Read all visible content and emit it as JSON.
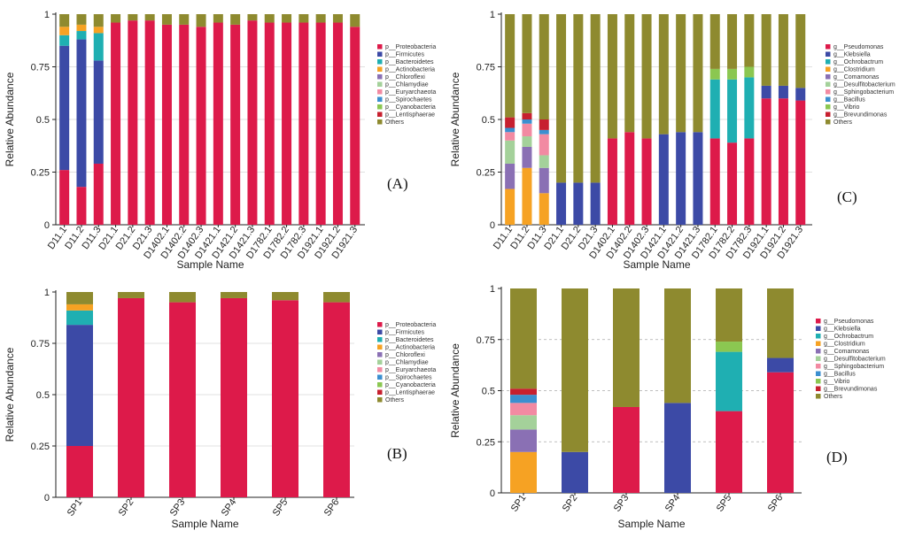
{
  "colors": {
    "Proteobacteria": "#dd1a4a",
    "Firmicutes": "#3c4aa6",
    "Bacteroidetes": "#1fafb2",
    "Actinobacteria": "#f6a223",
    "Chloroflexi": "#8a70b4",
    "Chlamydiae": "#a4d19a",
    "Euryarchaeota": "#f28aa2",
    "Spirochaetes": "#3b8fd0",
    "Cyanobacteria": "#8bc751",
    "Lentisphaerae": "#c7202f",
    "Others": "#8e8a2f",
    "Pseudomonas": "#dd1a4a",
    "Klebsiella": "#3c4aa6",
    "Ochrobactrum": "#1fafb2",
    "Clostridium": "#f6a223",
    "Comamonas": "#8a70b4",
    "Desulfitobacterium": "#a4d19a",
    "Sphingobacterium": "#f28aa2",
    "Bacillus": "#3b8fd0",
    "Vibrio": "#8bc751",
    "Brevundimonas": "#c7202f"
  },
  "chart_data": [
    {
      "panel": "(A)",
      "type": "bar",
      "stacked": true,
      "xlabel": "Sample Name",
      "ylabel": "Relative Abundance",
      "ylim": [
        0,
        1
      ],
      "yticks": [
        "0",
        "0.25",
        "0.5",
        "0.75",
        "1"
      ],
      "legend_position": "right",
      "categories": [
        "D11.1",
        "D11.2",
        "D11.3",
        "D21.1",
        "D21.2",
        "D21.3",
        "D1402.1",
        "D1402.2",
        "D1402.3",
        "D1421.1",
        "D1421.2",
        "D1421.3",
        "D1782.1",
        "D1782.2",
        "D1782.3",
        "D1921.1",
        "D1921.2",
        "D1921.3"
      ],
      "legend": [
        "p__Proteobacteria",
        "p__Firmicutes",
        "p__Bacteroidetes",
        "p__Actinobacteria",
        "p__Chloroflexi",
        "p__Chlamydiae",
        "p__Euryarchaeota",
        "p__Spirochaetes",
        "p__Cyanobacteria",
        "p__Lentisphaerae",
        "Others"
      ],
      "series": [
        {
          "name": "p__Proteobacteria",
          "key": "Proteobacteria",
          "values": [
            0.26,
            0.18,
            0.29,
            0.96,
            0.97,
            0.97,
            0.95,
            0.95,
            0.94,
            0.96,
            0.95,
            0.97,
            0.96,
            0.96,
            0.96,
            0.96,
            0.96,
            0.94
          ]
        },
        {
          "name": "p__Firmicutes",
          "key": "Firmicutes",
          "values": [
            0.59,
            0.7,
            0.49,
            0,
            0,
            0,
            0,
            0,
            0,
            0,
            0,
            0,
            0,
            0,
            0,
            0,
            0,
            0
          ]
        },
        {
          "name": "p__Bacteroidetes",
          "key": "Bacteroidetes",
          "values": [
            0.05,
            0.04,
            0.13,
            0,
            0,
            0,
            0,
            0,
            0,
            0,
            0,
            0,
            0,
            0,
            0,
            0,
            0,
            0
          ]
        },
        {
          "name": "p__Actinobacteria",
          "key": "Actinobacteria",
          "values": [
            0.04,
            0.03,
            0.03,
            0,
            0,
            0,
            0,
            0,
            0,
            0,
            0,
            0,
            0,
            0,
            0,
            0,
            0,
            0
          ]
        },
        {
          "name": "Others",
          "key": "Others",
          "values": [
            0.06,
            0.05,
            0.06,
            0.04,
            0.03,
            0.03,
            0.05,
            0.05,
            0.06,
            0.04,
            0.05,
            0.03,
            0.04,
            0.04,
            0.04,
            0.04,
            0.04,
            0.06
          ]
        }
      ]
    },
    {
      "panel": "(B)",
      "type": "bar",
      "stacked": true,
      "xlabel": "Sample Name",
      "ylabel": "Relative Abundance",
      "ylim": [
        0,
        1
      ],
      "yticks": [
        "0",
        "0.25",
        "0.5",
        "0.75",
        "1"
      ],
      "legend_position": "right",
      "categories": [
        "SP1",
        "SP2",
        "SP3",
        "SP4",
        "SP5",
        "SP6"
      ],
      "legend": [
        "p__Proteobacteria",
        "p__Firmicutes",
        "p__Bacteroidetes",
        "p__Actinobacteria",
        "p__Chloroflexi",
        "p__Chlamydiae",
        "p__Euryarchaeota",
        "p__Spirochaetes",
        "p__Cyanobacteria",
        "p__Lentisphaerae",
        "Others"
      ],
      "series": [
        {
          "name": "p__Proteobacteria",
          "key": "Proteobacteria",
          "values": [
            0.25,
            0.97,
            0.95,
            0.97,
            0.96,
            0.95
          ]
        },
        {
          "name": "p__Firmicutes",
          "key": "Firmicutes",
          "values": [
            0.59,
            0,
            0,
            0,
            0,
            0
          ]
        },
        {
          "name": "p__Bacteroidetes",
          "key": "Bacteroidetes",
          "values": [
            0.07,
            0,
            0,
            0,
            0,
            0
          ]
        },
        {
          "name": "p__Actinobacteria",
          "key": "Actinobacteria",
          "values": [
            0.03,
            0,
            0,
            0,
            0,
            0
          ]
        },
        {
          "name": "Others",
          "key": "Others",
          "values": [
            0.06,
            0.03,
            0.05,
            0.03,
            0.04,
            0.05
          ]
        }
      ]
    },
    {
      "panel": "(C)",
      "type": "bar",
      "stacked": true,
      "xlabel": "Sample Name",
      "ylabel": "Relative Abundance",
      "ylim": [
        0,
        1
      ],
      "yticks": [
        "0",
        "0.25",
        "0.5",
        "0.75",
        "1"
      ],
      "legend_position": "right",
      "categories": [
        "D11.1",
        "D11.2",
        "D11.3",
        "D21.1",
        "D21.2",
        "D21.3",
        "D1402.1",
        "D1402.2",
        "D1402.3",
        "D1421.1",
        "D1421.2",
        "D1421.3",
        "D1782.1",
        "D1782.2",
        "D1782.3",
        "D1921.1",
        "D1921.2",
        "D1921.3"
      ],
      "legend": [
        "g__Pseudomonas",
        "g__Klebsiella",
        "g__Ochrobactrum",
        "g__Clostridium",
        "g__Comamonas",
        "g__Desulfitobacterium",
        "g__Sphingobacterium",
        "g__Bacillus",
        "g__Vibrio",
        "g__Brevundimonas",
        "Others"
      ],
      "series": [
        {
          "name": "g__Pseudomonas",
          "key": "Pseudomonas",
          "values": [
            0,
            0,
            0,
            0,
            0,
            0,
            0.41,
            0.44,
            0.41,
            0,
            0,
            0,
            0.41,
            0.39,
            0.41,
            0.6,
            0.6,
            0.59
          ]
        },
        {
          "name": "g__Klebsiella",
          "key": "Klebsiella",
          "values": [
            0,
            0,
            0,
            0.2,
            0.2,
            0.2,
            0,
            0,
            0,
            0.43,
            0.44,
            0.44,
            0,
            0,
            0,
            0.06,
            0.06,
            0.06
          ]
        },
        {
          "name": "g__Ochrobactrum",
          "key": "Ochrobactrum",
          "values": [
            0,
            0,
            0,
            0,
            0,
            0,
            0,
            0,
            0,
            0,
            0,
            0,
            0.28,
            0.3,
            0.29,
            0,
            0,
            0
          ]
        },
        {
          "name": "g__Clostridium",
          "key": "Clostridium",
          "values": [
            0.17,
            0.27,
            0.15,
            0,
            0,
            0,
            0,
            0,
            0,
            0,
            0,
            0,
            0,
            0,
            0,
            0,
            0,
            0
          ]
        },
        {
          "name": "g__Comamonas",
          "key": "Comamonas",
          "values": [
            0.12,
            0.1,
            0.12,
            0,
            0,
            0,
            0,
            0,
            0,
            0,
            0,
            0,
            0,
            0,
            0,
            0,
            0,
            0
          ]
        },
        {
          "name": "g__Desulfitobacterium",
          "key": "Desulfitobacterium",
          "values": [
            0.11,
            0.05,
            0.06,
            0,
            0,
            0,
            0,
            0,
            0,
            0,
            0,
            0,
            0,
            0,
            0,
            0,
            0,
            0
          ]
        },
        {
          "name": "g__Sphingobacterium",
          "key": "Sphingobacterium",
          "values": [
            0.04,
            0.06,
            0.1,
            0,
            0,
            0,
            0,
            0,
            0,
            0,
            0,
            0,
            0,
            0,
            0,
            0,
            0,
            0
          ]
        },
        {
          "name": "g__Bacillus",
          "key": "Bacillus",
          "values": [
            0.02,
            0.02,
            0.02,
            0,
            0,
            0,
            0,
            0,
            0,
            0,
            0,
            0,
            0,
            0,
            0,
            0,
            0,
            0
          ]
        },
        {
          "name": "g__Vibrio",
          "key": "Vibrio",
          "values": [
            0,
            0,
            0,
            0,
            0,
            0,
            0,
            0,
            0,
            0,
            0,
            0,
            0.05,
            0.05,
            0.05,
            0,
            0,
            0
          ]
        },
        {
          "name": "g__Brevundimonas",
          "key": "Brevundimonas",
          "values": [
            0.05,
            0.03,
            0.05,
            0,
            0,
            0,
            0,
            0,
            0,
            0,
            0,
            0,
            0,
            0,
            0,
            0,
            0,
            0
          ]
        },
        {
          "name": "Others",
          "key": "Others",
          "values": [
            0.49,
            0.47,
            0.5,
            0.8,
            0.8,
            0.8,
            0.59,
            0.56,
            0.59,
            0.57,
            0.56,
            0.56,
            0.26,
            0.26,
            0.25,
            0.34,
            0.34,
            0.35
          ]
        }
      ]
    },
    {
      "panel": "(D)",
      "type": "bar",
      "stacked": true,
      "xlabel": "Sample Name",
      "ylabel": "Relative Abundance",
      "ylim": [
        0,
        1
      ],
      "yticks": [
        "0",
        "0.25",
        "0.5",
        "0.75",
        "1"
      ],
      "legend_position": "right",
      "categories": [
        "SP1",
        "SP2",
        "SP3",
        "SP4",
        "SP5",
        "SP6"
      ],
      "legend": [
        "g__Pseudomonas",
        "g__Klebsiella",
        "g__Ochrobactrum",
        "g__Clostridium",
        "g__Comamonas",
        "g__Desulfitobacterium",
        "g__Sphingobacterium",
        "g__Bacillus",
        "g__Vibrio",
        "g__Brevundimonas",
        "Others"
      ],
      "series": [
        {
          "name": "g__Pseudomonas",
          "key": "Pseudomonas",
          "values": [
            0,
            0,
            0.42,
            0,
            0.4,
            0.59
          ]
        },
        {
          "name": "g__Klebsiella",
          "key": "Klebsiella",
          "values": [
            0,
            0.2,
            0,
            0.44,
            0,
            0.07
          ]
        },
        {
          "name": "g__Ochrobactrum",
          "key": "Ochrobactrum",
          "values": [
            0,
            0,
            0,
            0,
            0.29,
            0
          ]
        },
        {
          "name": "g__Clostridium",
          "key": "Clostridium",
          "values": [
            0.2,
            0,
            0,
            0,
            0,
            0
          ]
        },
        {
          "name": "g__Comamonas",
          "key": "Comamonas",
          "values": [
            0.11,
            0,
            0,
            0,
            0,
            0
          ]
        },
        {
          "name": "g__Desulfitobacterium",
          "key": "Desulfitobacterium",
          "values": [
            0.07,
            0,
            0,
            0,
            0,
            0
          ]
        },
        {
          "name": "g__Sphingobacterium",
          "key": "Sphingobacterium",
          "values": [
            0.06,
            0,
            0,
            0,
            0,
            0
          ]
        },
        {
          "name": "g__Bacillus",
          "key": "Bacillus",
          "values": [
            0.04,
            0,
            0,
            0,
            0,
            0
          ]
        },
        {
          "name": "g__Vibrio",
          "key": "Vibrio",
          "values": [
            0,
            0,
            0,
            0,
            0.05,
            0
          ]
        },
        {
          "name": "g__Brevundimonas",
          "key": "Brevundimonas",
          "values": [
            0.03,
            0,
            0,
            0,
            0,
            0
          ]
        },
        {
          "name": "Others",
          "key": "Others",
          "values": [
            0.49,
            0.8,
            0.58,
            0.56,
            0.26,
            0.34
          ]
        }
      ]
    }
  ]
}
